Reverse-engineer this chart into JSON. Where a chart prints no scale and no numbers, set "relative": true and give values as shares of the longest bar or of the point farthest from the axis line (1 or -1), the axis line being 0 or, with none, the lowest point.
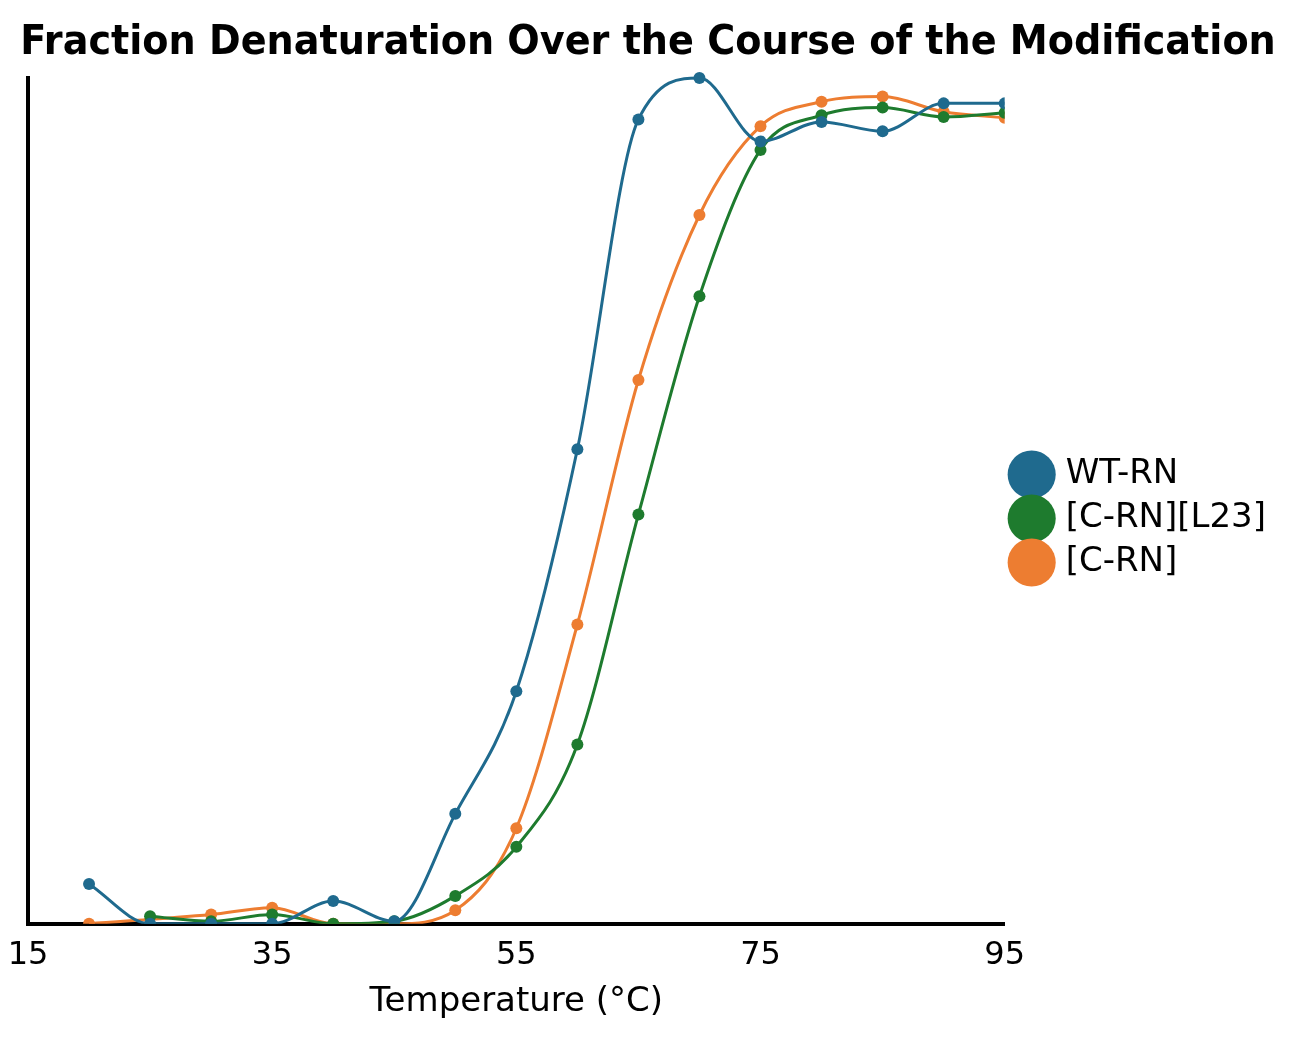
{
  "chart_data": {
    "type": "line",
    "title": "Fraction Denaturation Over the Course of the Modification",
    "xlabel": "Temperature (°C)",
    "relative": true,
    "xlim": [
      15,
      95
    ],
    "xticks": [
      15,
      35,
      55,
      75,
      95
    ],
    "grid": false,
    "legend": "right",
    "marker": "circle",
    "line_style": "solid",
    "series": [
      {
        "name": "[C-RN]",
        "color": "#ed7d31",
        "x": [
          20,
          25,
          30,
          35,
          40,
          45,
          50,
          55,
          60,
          65,
          70,
          75,
          80,
          85,
          90,
          95
        ],
        "values": [
          0,
          null,
          0.011,
          0.019,
          0,
          0,
          0.016,
          0.113,
          0.354,
          0.643,
          0.838,
          0.943,
          0.972,
          0.978,
          0.96,
          0.953
        ]
      },
      {
        "name": "[C-RN][L23]",
        "color": "#1e7b2e",
        "x": [
          25,
          30,
          35,
          40,
          45,
          50,
          55,
          60,
          65,
          70,
          75,
          80,
          85,
          90,
          95
        ],
        "values": [
          0.009,
          0.003,
          0.011,
          0,
          0.003,
          0.033,
          0.091,
          0.212,
          0.484,
          0.742,
          0.915,
          0.956,
          0.965,
          0.954,
          0.959
        ]
      },
      {
        "name": "WT-RN",
        "color": "#1f6a8e",
        "x": [
          20,
          25,
          30,
          35,
          40,
          45,
          50,
          55,
          60,
          65,
          70,
          75,
          80,
          85,
          90,
          95
        ],
        "values": [
          0.047,
          0,
          0,
          0,
          0.027,
          0.003,
          0.13,
          0.275,
          0.561,
          0.951,
          1,
          0.925,
          0.948,
          0.937,
          0.97,
          0.97
        ]
      }
    ]
  }
}
